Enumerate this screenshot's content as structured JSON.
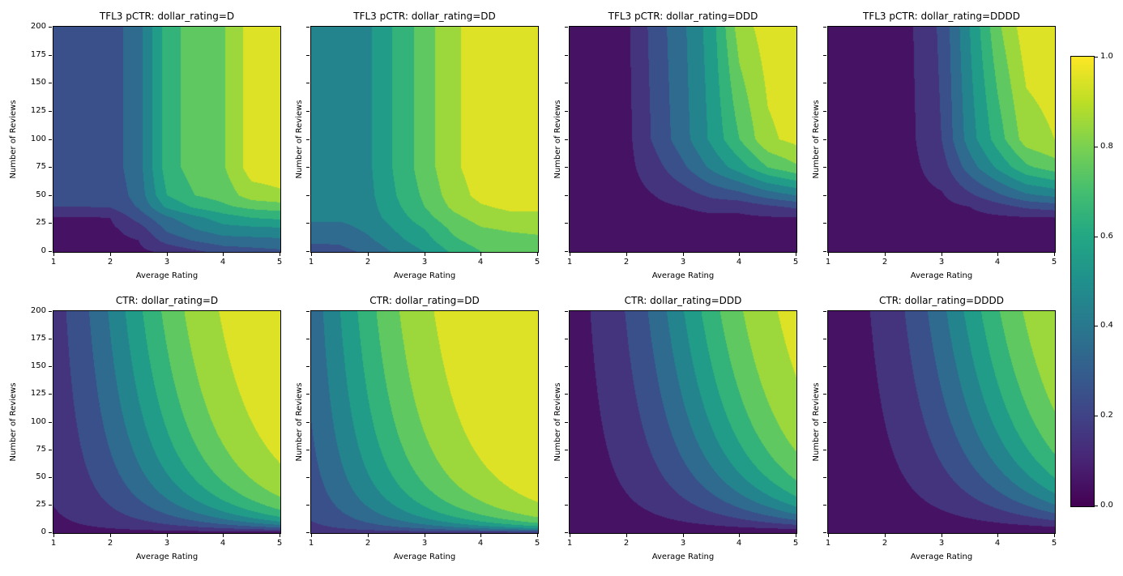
{
  "figure": {
    "background": "#ffffff",
    "text_color": "#000000",
    "colormap": {
      "name": "viridis",
      "stops": [
        "#440154",
        "#482475",
        "#404387",
        "#345e8d",
        "#29788e",
        "#20908c",
        "#22a784",
        "#44be70",
        "#7ad151",
        "#bdde26",
        "#fde725"
      ]
    },
    "levels": [
      0,
      0.1,
      0.2,
      0.3,
      0.4,
      0.5,
      0.6,
      0.7,
      0.8,
      0.9,
      1.0
    ],
    "colorbar": {
      "min": 0.0,
      "max": 1.0,
      "ticks": [
        0.0,
        0.2,
        0.4,
        0.6,
        0.8,
        1.0
      ],
      "tick_labels": [
        "0.0",
        "0.2",
        "0.4",
        "0.6",
        "0.8",
        "1.0"
      ]
    }
  },
  "chart_data": [
    {
      "id": "tfl3-d",
      "type": "contourf",
      "row": 0,
      "col": 0,
      "title": "TFL3 pCTR: dollar_rating=D",
      "xlabel": "Average Rating",
      "ylabel": "Number of Reviews",
      "xlim": [
        1,
        5
      ],
      "ylim": [
        0,
        200
      ],
      "xticks": [
        "1",
        "2",
        "3",
        "4",
        "5"
      ],
      "yticks": [
        "0",
        "25",
        "50",
        "75",
        "100",
        "125",
        "150",
        "175",
        "200"
      ],
      "show_ytick_labels": true,
      "grid": {
        "ratings": [
          1,
          1.5,
          2,
          2.5,
          3,
          3.5,
          4,
          4.5,
          5
        ],
        "reviews": [
          0,
          10,
          20,
          30,
          40,
          50,
          75,
          100,
          200
        ],
        "values": [
          [
            0.04,
            0.04,
            0.05,
            0.08,
            0.12,
            0.18,
            0.24,
            0.26,
            0.28
          ],
          [
            0.05,
            0.05,
            0.07,
            0.1,
            0.24,
            0.31,
            0.36,
            0.37,
            0.38
          ],
          [
            0.06,
            0.06,
            0.08,
            0.15,
            0.32,
            0.4,
            0.46,
            0.47,
            0.48
          ],
          [
            0.09,
            0.09,
            0.1,
            0.24,
            0.38,
            0.47,
            0.55,
            0.6,
            0.62
          ],
          [
            0.2,
            0.2,
            0.21,
            0.31,
            0.52,
            0.62,
            0.68,
            0.73,
            0.75
          ],
          [
            0.22,
            0.22,
            0.23,
            0.34,
            0.6,
            0.7,
            0.74,
            0.85,
            0.88
          ],
          [
            0.25,
            0.25,
            0.25,
            0.36,
            0.65,
            0.75,
            0.79,
            0.95,
            0.96
          ],
          [
            0.25,
            0.25,
            0.25,
            0.36,
            0.65,
            0.75,
            0.79,
            0.95,
            0.96
          ],
          [
            0.25,
            0.25,
            0.25,
            0.36,
            0.65,
            0.75,
            0.79,
            0.95,
            0.97
          ]
        ]
      }
    },
    {
      "id": "tfl3-dd",
      "type": "contourf",
      "row": 0,
      "col": 1,
      "title": "TFL3 pCTR: dollar_rating=DD",
      "xlabel": "Average Rating",
      "ylabel": "Number of Reviews",
      "xlim": [
        1,
        5
      ],
      "ylim": [
        0,
        200
      ],
      "xticks": [
        "1",
        "2",
        "3",
        "4",
        "5"
      ],
      "yticks": [
        "0",
        "25",
        "50",
        "75",
        "100",
        "125",
        "150",
        "175",
        "200"
      ],
      "show_ytick_labels": false,
      "grid": {
        "ratings": [
          1,
          1.5,
          2,
          2.5,
          3,
          3.5,
          4,
          4.5,
          5
        ],
        "reviews": [
          0,
          10,
          20,
          30,
          40,
          50,
          75,
          100,
          200
        ],
        "values": [
          [
            0.25,
            0.27,
            0.32,
            0.42,
            0.5,
            0.62,
            0.7,
            0.72,
            0.73
          ],
          [
            0.32,
            0.32,
            0.38,
            0.47,
            0.56,
            0.68,
            0.75,
            0.77,
            0.78
          ],
          [
            0.36,
            0.36,
            0.42,
            0.51,
            0.6,
            0.72,
            0.79,
            0.81,
            0.82
          ],
          [
            0.42,
            0.42,
            0.45,
            0.55,
            0.66,
            0.77,
            0.84,
            0.87,
            0.87
          ],
          [
            0.44,
            0.44,
            0.46,
            0.58,
            0.7,
            0.82,
            0.89,
            0.92,
            0.92
          ],
          [
            0.45,
            0.45,
            0.47,
            0.6,
            0.72,
            0.85,
            0.93,
            0.94,
            0.95
          ],
          [
            0.45,
            0.45,
            0.48,
            0.62,
            0.75,
            0.88,
            0.95,
            0.96,
            0.96
          ],
          [
            0.45,
            0.45,
            0.48,
            0.62,
            0.75,
            0.88,
            0.95,
            0.96,
            0.97
          ],
          [
            0.45,
            0.45,
            0.48,
            0.62,
            0.75,
            0.88,
            0.95,
            0.96,
            0.97
          ]
        ]
      }
    },
    {
      "id": "tfl3-ddd",
      "type": "contourf",
      "row": 0,
      "col": 2,
      "title": "TFL3 pCTR: dollar_rating=DDD",
      "xlabel": "Average Rating",
      "ylabel": "Number of Reviews",
      "xlim": [
        1,
        5
      ],
      "ylim": [
        0,
        200
      ],
      "xticks": [
        "1",
        "2",
        "3",
        "4",
        "5"
      ],
      "yticks": [
        "0",
        "25",
        "50",
        "75",
        "100",
        "125",
        "150",
        "175",
        "200"
      ],
      "show_ytick_labels": false,
      "grid": {
        "ratings": [
          1,
          1.5,
          2,
          2.5,
          3,
          3.5,
          4,
          4.5,
          5
        ],
        "reviews": [
          0,
          10,
          20,
          30,
          40,
          50,
          75,
          100,
          200
        ],
        "values": [
          [
            0.03,
            0.03,
            0.03,
            0.03,
            0.04,
            0.04,
            0.04,
            0.05,
            0.05
          ],
          [
            0.03,
            0.03,
            0.03,
            0.04,
            0.04,
            0.05,
            0.05,
            0.06,
            0.06
          ],
          [
            0.04,
            0.04,
            0.04,
            0.05,
            0.06,
            0.07,
            0.07,
            0.08,
            0.08
          ],
          [
            0.04,
            0.04,
            0.05,
            0.06,
            0.07,
            0.08,
            0.08,
            0.09,
            0.09
          ],
          [
            0.05,
            0.05,
            0.05,
            0.08,
            0.1,
            0.13,
            0.13,
            0.18,
            0.22
          ],
          [
            0.05,
            0.05,
            0.06,
            0.1,
            0.15,
            0.22,
            0.26,
            0.34,
            0.4
          ],
          [
            0.05,
            0.05,
            0.07,
            0.16,
            0.28,
            0.42,
            0.55,
            0.7,
            0.78
          ],
          [
            0.05,
            0.05,
            0.07,
            0.22,
            0.36,
            0.52,
            0.7,
            0.88,
            0.93
          ],
          [
            0.05,
            0.05,
            0.08,
            0.24,
            0.38,
            0.55,
            0.85,
            0.95,
            0.97
          ]
        ]
      }
    },
    {
      "id": "tfl3-dddd",
      "type": "contourf",
      "row": 0,
      "col": 3,
      "title": "TFL3 pCTR: dollar_rating=DDDD",
      "xlabel": "Average Rating",
      "ylabel": "Number of Reviews",
      "xlim": [
        1,
        5
      ],
      "ylim": [
        0,
        200
      ],
      "xticks": [
        "1",
        "2",
        "3",
        "4",
        "5"
      ],
      "yticks": [
        "0",
        "25",
        "50",
        "75",
        "100",
        "125",
        "150",
        "175",
        "200"
      ],
      "show_ytick_labels": false,
      "grid": {
        "ratings": [
          1,
          1.5,
          2,
          2.5,
          3,
          3.5,
          4,
          4.5,
          5
        ],
        "reviews": [
          0,
          10,
          20,
          30,
          40,
          50,
          75,
          100,
          200
        ],
        "values": [
          [
            0.03,
            0.03,
            0.03,
            0.03,
            0.03,
            0.04,
            0.04,
            0.05,
            0.05
          ],
          [
            0.03,
            0.03,
            0.03,
            0.03,
            0.04,
            0.04,
            0.05,
            0.06,
            0.06
          ],
          [
            0.03,
            0.03,
            0.03,
            0.04,
            0.05,
            0.06,
            0.07,
            0.07,
            0.08
          ],
          [
            0.04,
            0.04,
            0.04,
            0.05,
            0.06,
            0.07,
            0.08,
            0.09,
            0.095
          ],
          [
            0.04,
            0.04,
            0.04,
            0.06,
            0.07,
            0.1,
            0.16,
            0.22,
            0.25
          ],
          [
            0.04,
            0.04,
            0.05,
            0.07,
            0.09,
            0.18,
            0.28,
            0.38,
            0.42
          ],
          [
            0.05,
            0.05,
            0.06,
            0.08,
            0.15,
            0.35,
            0.52,
            0.68,
            0.75
          ],
          [
            0.05,
            0.05,
            0.06,
            0.09,
            0.2,
            0.45,
            0.65,
            0.85,
            0.9
          ],
          [
            0.06,
            0.06,
            0.08,
            0.1,
            0.22,
            0.5,
            0.78,
            0.96,
            0.97
          ]
        ]
      }
    },
    {
      "id": "ctr-d",
      "type": "contourf",
      "row": 1,
      "col": 0,
      "title": "CTR: dollar_rating=D",
      "xlabel": "Average Rating",
      "ylabel": "Number of Reviews",
      "xlim": [
        1,
        5
      ],
      "ylim": [
        0,
        200
      ],
      "xticks": [
        "1",
        "2",
        "3",
        "4",
        "5"
      ],
      "yticks": [
        "0",
        "25",
        "50",
        "75",
        "100",
        "125",
        "150",
        "175",
        "200"
      ],
      "show_ytick_labels": true,
      "function": {
        "form": "sigmoid",
        "expression": "1 / (1 + exp(baseline - avg_rating * ln(1 + num_reviews) / 4))",
        "baseline": 3
      }
    },
    {
      "id": "ctr-dd",
      "type": "contourf",
      "row": 1,
      "col": 1,
      "title": "CTR: dollar_rating=DD",
      "xlabel": "Average Rating",
      "ylabel": "Number of Reviews",
      "xlim": [
        1,
        5
      ],
      "ylim": [
        0,
        200
      ],
      "xticks": [
        "1",
        "2",
        "3",
        "4",
        "5"
      ],
      "yticks": [
        "0",
        "25",
        "50",
        "75",
        "100",
        "125",
        "150",
        "175",
        "200"
      ],
      "show_ytick_labels": false,
      "function": {
        "form": "sigmoid",
        "expression": "1 / (1 + exp(baseline - avg_rating * ln(1 + num_reviews) / 4))",
        "baseline": 2
      }
    },
    {
      "id": "ctr-ddd",
      "type": "contourf",
      "row": 1,
      "col": 2,
      "title": "CTR: dollar_rating=DDD",
      "xlabel": "Average Rating",
      "ylabel": "Number of Reviews",
      "xlim": [
        1,
        5
      ],
      "ylim": [
        0,
        200
      ],
      "xticks": [
        "1",
        "2",
        "3",
        "4",
        "5"
      ],
      "yticks": [
        "0",
        "25",
        "50",
        "75",
        "100",
        "125",
        "150",
        "175",
        "200"
      ],
      "show_ytick_labels": false,
      "function": {
        "form": "sigmoid",
        "expression": "1 / (1 + exp(baseline - avg_rating * ln(1 + num_reviews) / 4))",
        "baseline": 4
      }
    },
    {
      "id": "ctr-dddd",
      "type": "contourf",
      "row": 1,
      "col": 3,
      "title": "CTR: dollar_rating=DDDD",
      "xlabel": "Average Rating",
      "ylabel": "Number of Reviews",
      "xlim": [
        1,
        5
      ],
      "ylim": [
        0,
        200
      ],
      "xticks": [
        "1",
        "2",
        "3",
        "4",
        "5"
      ],
      "yticks": [
        "0",
        "25",
        "50",
        "75",
        "100",
        "125",
        "150",
        "175",
        "200"
      ],
      "show_ytick_labels": false,
      "function": {
        "form": "sigmoid",
        "expression": "1 / (1 + exp(baseline - avg_rating * ln(1 + num_reviews) / 4))",
        "baseline": 4.5
      }
    }
  ]
}
